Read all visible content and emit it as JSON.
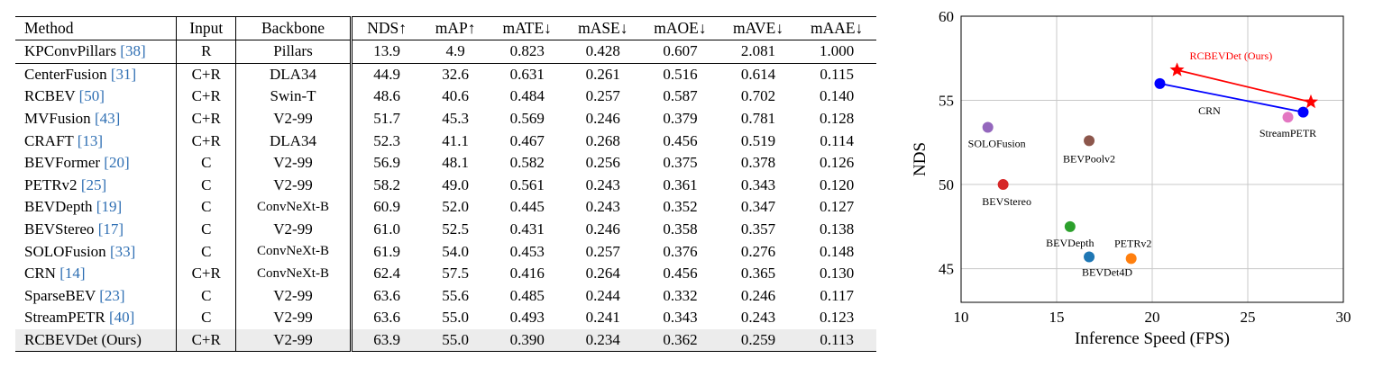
{
  "table": {
    "headers": [
      "Method",
      "Input",
      "Backbone",
      "NDS↑",
      "mAP↑",
      "mATE↓",
      "mASE↓",
      "mAOE↓",
      "mAVE↓",
      "mAAE↓"
    ],
    "rows": [
      {
        "method": "KPConvPillars",
        "ref": "[38]",
        "input": "R",
        "backbone": "Pillars",
        "values": [
          "13.9",
          "4.9",
          "0.823",
          "0.428",
          "0.607",
          "2.081",
          "1.000"
        ],
        "bold": []
      },
      {
        "method": "CenterFusion",
        "ref": "[31]",
        "input": "C+R",
        "backbone": "DLA34",
        "values": [
          "44.9",
          "32.6",
          "0.631",
          "0.261",
          "0.516",
          "0.614",
          "0.115"
        ],
        "bold": []
      },
      {
        "method": "RCBEV",
        "ref": "[50]",
        "input": "C+R",
        "backbone": "Swin-T",
        "values": [
          "48.6",
          "40.6",
          "0.484",
          "0.257",
          "0.587",
          "0.702",
          "0.140"
        ],
        "bold": []
      },
      {
        "method": "MVFusion",
        "ref": "[43]",
        "input": "C+R",
        "backbone": "V2-99",
        "values": [
          "51.7",
          "45.3",
          "0.569",
          "0.246",
          "0.379",
          "0.781",
          "0.128"
        ],
        "bold": []
      },
      {
        "method": "CRAFT",
        "ref": "[13]",
        "input": "C+R",
        "backbone": "DLA34",
        "values": [
          "52.3",
          "41.1",
          "0.467",
          "0.268",
          "0.456",
          "0.519",
          "0.114"
        ],
        "bold": []
      },
      {
        "method": "BEVFormer",
        "ref": "[20]",
        "input": "C",
        "backbone": "V2-99",
        "values": [
          "56.9",
          "48.1",
          "0.582",
          "0.256",
          "0.375",
          "0.378",
          "0.126"
        ],
        "bold": []
      },
      {
        "method": "PETRv2",
        "ref": "[25]",
        "input": "C",
        "backbone": "V2-99",
        "values": [
          "58.2",
          "49.0",
          "0.561",
          "0.243",
          "0.361",
          "0.343",
          "0.120"
        ],
        "bold": []
      },
      {
        "method": "BEVDepth",
        "ref": "[19]",
        "input": "C",
        "backbone": "ConvNeXt-B",
        "values": [
          "60.9",
          "52.0",
          "0.445",
          "0.243",
          "0.352",
          "0.347",
          "0.127"
        ],
        "bold": []
      },
      {
        "method": "BEVStereo",
        "ref": "[17]",
        "input": "C",
        "backbone": "V2-99",
        "values": [
          "61.0",
          "52.5",
          "0.431",
          "0.246",
          "0.358",
          "0.357",
          "0.138"
        ],
        "bold": []
      },
      {
        "method": "SOLOFusion",
        "ref": "[33]",
        "input": "C",
        "backbone": "ConvNeXt-B",
        "values": [
          "61.9",
          "54.0",
          "0.453",
          "0.257",
          "0.376",
          "0.276",
          "0.148"
        ],
        "bold": []
      },
      {
        "method": "CRN",
        "ref": "[14]",
        "input": "C+R",
        "backbone": "ConvNeXt-B",
        "values": [
          "62.4",
          "57.5",
          "0.416",
          "0.264",
          "0.456",
          "0.365",
          "0.130"
        ],
        "bold": [
          1
        ]
      },
      {
        "method": "SparseBEV",
        "ref": "[23]",
        "input": "C",
        "backbone": "V2-99",
        "values": [
          "63.6",
          "55.6",
          "0.485",
          "0.244",
          "0.332",
          "0.246",
          "0.117"
        ],
        "bold": [
          4
        ]
      },
      {
        "method": "StreamPETR",
        "ref": "[40]",
        "input": "C",
        "backbone": "V2-99",
        "values": [
          "63.6",
          "55.0",
          "0.493",
          "0.241",
          "0.343",
          "0.243",
          "0.123"
        ],
        "bold": [
          5
        ]
      },
      {
        "method": "RCBEVDet (Ours)",
        "ref": "",
        "input": "C+R",
        "backbone": "V2-99",
        "values": [
          "63.9",
          "55.0",
          "0.390",
          "0.234",
          "0.362",
          "0.259",
          "0.113"
        ],
        "bold": [
          0,
          2,
          3,
          6
        ]
      }
    ]
  },
  "chart_data": {
    "type": "scatter",
    "xlabel": "Inference Speed (FPS)",
    "ylabel": "NDS",
    "xlim": [
      10,
      30
    ],
    "ylim": [
      43,
      60
    ],
    "xticks": [
      10,
      15,
      20,
      25,
      30
    ],
    "yticks": [
      45,
      50,
      55,
      60
    ],
    "grid": true,
    "points": [
      {
        "label": "SOLOFusion",
        "x": 11.4,
        "y": 53.4,
        "color": "#9467bd",
        "marker": "circle"
      },
      {
        "label": "BEVStereo",
        "x": 12.2,
        "y": 50.0,
        "color": "#d62728",
        "marker": "circle"
      },
      {
        "label": "BEVPoolv2",
        "x": 16.7,
        "y": 52.6,
        "color": "#8c564b",
        "marker": "circle"
      },
      {
        "label": "BEVDepth",
        "x": 15.7,
        "y": 47.5,
        "color": "#2ca02c",
        "marker": "circle"
      },
      {
        "label": "BEVDet4D",
        "x": 16.7,
        "y": 45.7,
        "color": "#1f77b4",
        "marker": "circle"
      },
      {
        "label": "PETRv2",
        "x": 18.9,
        "y": 45.6,
        "color": "#ff7f0e",
        "marker": "circle"
      },
      {
        "label": "StreamPETR",
        "x": 27.1,
        "y": 54.0,
        "color": "#e377c2",
        "marker": "circle"
      }
    ],
    "series": [
      {
        "name": "CRN",
        "color": "#0000ff",
        "marker": "circle",
        "x": [
          20.4,
          27.9
        ],
        "y": [
          56.0,
          54.3
        ]
      },
      {
        "name": "RCBEVDet (Ours)",
        "color": "#ff0000",
        "marker": "star",
        "x": [
          21.3,
          28.3
        ],
        "y": [
          56.8,
          54.9
        ]
      }
    ]
  }
}
